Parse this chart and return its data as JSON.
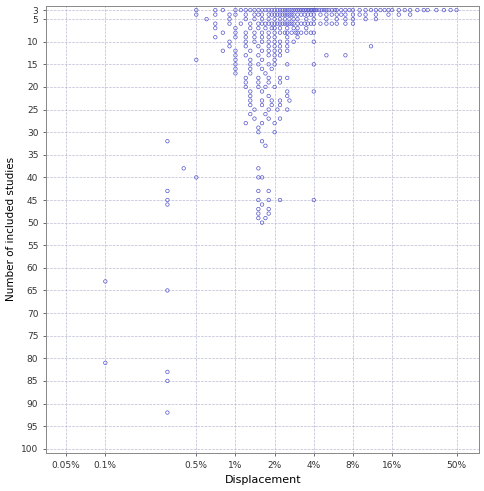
{
  "title": "",
  "xlabel": "Displacement",
  "ylabel": "Number of included studies",
  "marker": "o",
  "marker_color": "#5555cc",
  "marker_size": 2.5,
  "marker_facecolor": "none",
  "background_color": "#ffffff",
  "grid_color": "#aaaacc",
  "x_ticks_labels": [
    "0.05%",
    "0.1%",
    "0.5%",
    "1%",
    "2%",
    "4%",
    "8%",
    "16%",
    "50%"
  ],
  "x_ticks_values": [
    0.0005,
    0.001,
    0.005,
    0.01,
    0.02,
    0.04,
    0.08,
    0.16,
    0.5
  ],
  "y_ticks": [
    3,
    5,
    10,
    15,
    20,
    25,
    30,
    35,
    40,
    45,
    50,
    55,
    60,
    65,
    70,
    75,
    80,
    85,
    90,
    95,
    100
  ],
  "points": [
    [
      0.005,
      3
    ],
    [
      0.007,
      3
    ],
    [
      0.008,
      3
    ],
    [
      0.01,
      3
    ],
    [
      0.011,
      3
    ],
    [
      0.012,
      3
    ],
    [
      0.013,
      3
    ],
    [
      0.014,
      3
    ],
    [
      0.015,
      3
    ],
    [
      0.016,
      3
    ],
    [
      0.017,
      3
    ],
    [
      0.018,
      3
    ],
    [
      0.019,
      3
    ],
    [
      0.02,
      3
    ],
    [
      0.021,
      3
    ],
    [
      0.022,
      3
    ],
    [
      0.023,
      3
    ],
    [
      0.024,
      3
    ],
    [
      0.025,
      3
    ],
    [
      0.026,
      3
    ],
    [
      0.027,
      3
    ],
    [
      0.028,
      3
    ],
    [
      0.029,
      3
    ],
    [
      0.03,
      3
    ],
    [
      0.031,
      3
    ],
    [
      0.032,
      3
    ],
    [
      0.033,
      3
    ],
    [
      0.034,
      3
    ],
    [
      0.035,
      3
    ],
    [
      0.036,
      3
    ],
    [
      0.037,
      3
    ],
    [
      0.038,
      3
    ],
    [
      0.039,
      3
    ],
    [
      0.04,
      3
    ],
    [
      0.041,
      3
    ],
    [
      0.042,
      3
    ],
    [
      0.044,
      3
    ],
    [
      0.046,
      3
    ],
    [
      0.048,
      3
    ],
    [
      0.05,
      3
    ],
    [
      0.052,
      3
    ],
    [
      0.055,
      3
    ],
    [
      0.058,
      3
    ],
    [
      0.06,
      3
    ],
    [
      0.065,
      3
    ],
    [
      0.07,
      3
    ],
    [
      0.075,
      3
    ],
    [
      0.08,
      3
    ],
    [
      0.09,
      3
    ],
    [
      0.1,
      3
    ],
    [
      0.11,
      3
    ],
    [
      0.12,
      3
    ],
    [
      0.13,
      3
    ],
    [
      0.14,
      3
    ],
    [
      0.15,
      3
    ],
    [
      0.16,
      3
    ],
    [
      0.18,
      3
    ],
    [
      0.2,
      3
    ],
    [
      0.22,
      3
    ],
    [
      0.25,
      3
    ],
    [
      0.28,
      3
    ],
    [
      0.3,
      3
    ],
    [
      0.35,
      3
    ],
    [
      0.4,
      3
    ],
    [
      0.45,
      3
    ],
    [
      0.5,
      3
    ],
    [
      0.005,
      4
    ],
    [
      0.007,
      4
    ],
    [
      0.009,
      4
    ],
    [
      0.01,
      4
    ],
    [
      0.012,
      4
    ],
    [
      0.014,
      4
    ],
    [
      0.015,
      4
    ],
    [
      0.016,
      4
    ],
    [
      0.018,
      4
    ],
    [
      0.019,
      4
    ],
    [
      0.02,
      4
    ],
    [
      0.021,
      4
    ],
    [
      0.022,
      4
    ],
    [
      0.023,
      4
    ],
    [
      0.024,
      4
    ],
    [
      0.025,
      4
    ],
    [
      0.026,
      4
    ],
    [
      0.027,
      4
    ],
    [
      0.028,
      4
    ],
    [
      0.03,
      4
    ],
    [
      0.032,
      4
    ],
    [
      0.034,
      4
    ],
    [
      0.036,
      4
    ],
    [
      0.038,
      4
    ],
    [
      0.04,
      4
    ],
    [
      0.045,
      4
    ],
    [
      0.05,
      4
    ],
    [
      0.055,
      4
    ],
    [
      0.06,
      4
    ],
    [
      0.065,
      4
    ],
    [
      0.07,
      4
    ],
    [
      0.08,
      4
    ],
    [
      0.09,
      4
    ],
    [
      0.1,
      4
    ],
    [
      0.12,
      4
    ],
    [
      0.15,
      4
    ],
    [
      0.18,
      4
    ],
    [
      0.22,
      4
    ],
    [
      0.006,
      5
    ],
    [
      0.009,
      5
    ],
    [
      0.012,
      5
    ],
    [
      0.014,
      5
    ],
    [
      0.016,
      5
    ],
    [
      0.018,
      5
    ],
    [
      0.02,
      5
    ],
    [
      0.022,
      5
    ],
    [
      0.024,
      5
    ],
    [
      0.026,
      5
    ],
    [
      0.028,
      5
    ],
    [
      0.03,
      5
    ],
    [
      0.035,
      5
    ],
    [
      0.04,
      5
    ],
    [
      0.05,
      5
    ],
    [
      0.06,
      5
    ],
    [
      0.07,
      5
    ],
    [
      0.08,
      5
    ],
    [
      0.1,
      5
    ],
    [
      0.12,
      5
    ],
    [
      0.007,
      6
    ],
    [
      0.009,
      6
    ],
    [
      0.011,
      6
    ],
    [
      0.013,
      6
    ],
    [
      0.015,
      6
    ],
    [
      0.016,
      6
    ],
    [
      0.017,
      6
    ],
    [
      0.018,
      6
    ],
    [
      0.019,
      6
    ],
    [
      0.02,
      6
    ],
    [
      0.021,
      6
    ],
    [
      0.022,
      6
    ],
    [
      0.023,
      6
    ],
    [
      0.024,
      6
    ],
    [
      0.025,
      6
    ],
    [
      0.026,
      6
    ],
    [
      0.027,
      6
    ],
    [
      0.028,
      6
    ],
    [
      0.03,
      6
    ],
    [
      0.032,
      6
    ],
    [
      0.034,
      6
    ],
    [
      0.036,
      6
    ],
    [
      0.038,
      6
    ],
    [
      0.04,
      6
    ],
    [
      0.045,
      6
    ],
    [
      0.05,
      6
    ],
    [
      0.055,
      6
    ],
    [
      0.06,
      6
    ],
    [
      0.07,
      6
    ],
    [
      0.08,
      6
    ],
    [
      0.007,
      7
    ],
    [
      0.01,
      7
    ],
    [
      0.013,
      7
    ],
    [
      0.015,
      7
    ],
    [
      0.017,
      7
    ],
    [
      0.019,
      7
    ],
    [
      0.02,
      7
    ],
    [
      0.022,
      7
    ],
    [
      0.025,
      7
    ],
    [
      0.028,
      7
    ],
    [
      0.03,
      7
    ],
    [
      0.035,
      7
    ],
    [
      0.008,
      8
    ],
    [
      0.01,
      8
    ],
    [
      0.012,
      8
    ],
    [
      0.014,
      8
    ],
    [
      0.016,
      8
    ],
    [
      0.018,
      8
    ],
    [
      0.02,
      8
    ],
    [
      0.022,
      8
    ],
    [
      0.024,
      8
    ],
    [
      0.025,
      8
    ],
    [
      0.027,
      8
    ],
    [
      0.029,
      8
    ],
    [
      0.03,
      8
    ],
    [
      0.032,
      8
    ],
    [
      0.035,
      8
    ],
    [
      0.038,
      8
    ],
    [
      0.04,
      8
    ],
    [
      0.007,
      9
    ],
    [
      0.01,
      9
    ],
    [
      0.012,
      9
    ],
    [
      0.014,
      9
    ],
    [
      0.016,
      9
    ],
    [
      0.018,
      9
    ],
    [
      0.02,
      9
    ],
    [
      0.025,
      9
    ],
    [
      0.03,
      9
    ],
    [
      0.009,
      10
    ],
    [
      0.012,
      10
    ],
    [
      0.014,
      10
    ],
    [
      0.016,
      10
    ],
    [
      0.018,
      10
    ],
    [
      0.02,
      10
    ],
    [
      0.022,
      10
    ],
    [
      0.025,
      10
    ],
    [
      0.028,
      10
    ],
    [
      0.04,
      10
    ],
    [
      0.009,
      11
    ],
    [
      0.012,
      11
    ],
    [
      0.015,
      11
    ],
    [
      0.018,
      11
    ],
    [
      0.02,
      11
    ],
    [
      0.022,
      11
    ],
    [
      0.025,
      11
    ],
    [
      0.11,
      11
    ],
    [
      0.008,
      12
    ],
    [
      0.01,
      12
    ],
    [
      0.013,
      12
    ],
    [
      0.016,
      12
    ],
    [
      0.018,
      12
    ],
    [
      0.02,
      12
    ],
    [
      0.022,
      12
    ],
    [
      0.025,
      12
    ],
    [
      0.01,
      13
    ],
    [
      0.012,
      13
    ],
    [
      0.015,
      13
    ],
    [
      0.018,
      13
    ],
    [
      0.02,
      13
    ],
    [
      0.022,
      13
    ],
    [
      0.05,
      13
    ],
    [
      0.07,
      13
    ],
    [
      0.005,
      14
    ],
    [
      0.01,
      14
    ],
    [
      0.013,
      14
    ],
    [
      0.016,
      14
    ],
    [
      0.02,
      14
    ],
    [
      0.01,
      15
    ],
    [
      0.013,
      15
    ],
    [
      0.015,
      15
    ],
    [
      0.018,
      15
    ],
    [
      0.02,
      15
    ],
    [
      0.025,
      15
    ],
    [
      0.04,
      15
    ],
    [
      0.01,
      16
    ],
    [
      0.013,
      16
    ],
    [
      0.016,
      16
    ],
    [
      0.019,
      16
    ],
    [
      0.01,
      17
    ],
    [
      0.013,
      17
    ],
    [
      0.017,
      17
    ],
    [
      0.012,
      18
    ],
    [
      0.015,
      18
    ],
    [
      0.018,
      18
    ],
    [
      0.022,
      18
    ],
    [
      0.025,
      18
    ],
    [
      0.012,
      19
    ],
    [
      0.015,
      19
    ],
    [
      0.018,
      19
    ],
    [
      0.022,
      19
    ],
    [
      0.012,
      20
    ],
    [
      0.015,
      20
    ],
    [
      0.017,
      20
    ],
    [
      0.02,
      20
    ],
    [
      0.013,
      21
    ],
    [
      0.016,
      21
    ],
    [
      0.025,
      21
    ],
    [
      0.04,
      21
    ],
    [
      0.013,
      22
    ],
    [
      0.018,
      22
    ],
    [
      0.025,
      22
    ],
    [
      0.013,
      23
    ],
    [
      0.016,
      23
    ],
    [
      0.019,
      23
    ],
    [
      0.022,
      23
    ],
    [
      0.026,
      23
    ],
    [
      0.013,
      24
    ],
    [
      0.016,
      24
    ],
    [
      0.019,
      24
    ],
    [
      0.022,
      24
    ],
    [
      0.014,
      25
    ],
    [
      0.018,
      25
    ],
    [
      0.021,
      25
    ],
    [
      0.025,
      25
    ],
    [
      0.013,
      26
    ],
    [
      0.017,
      26
    ],
    [
      0.014,
      27
    ],
    [
      0.018,
      27
    ],
    [
      0.022,
      27
    ],
    [
      0.012,
      28
    ],
    [
      0.016,
      28
    ],
    [
      0.02,
      28
    ],
    [
      0.015,
      29
    ],
    [
      0.015,
      30
    ],
    [
      0.02,
      30
    ],
    [
      0.003,
      32
    ],
    [
      0.016,
      32
    ],
    [
      0.017,
      33
    ],
    [
      0.004,
      38
    ],
    [
      0.015,
      38
    ],
    [
      0.005,
      40
    ],
    [
      0.015,
      40
    ],
    [
      0.016,
      40
    ],
    [
      0.003,
      43
    ],
    [
      0.015,
      43
    ],
    [
      0.018,
      43
    ],
    [
      0.003,
      45
    ],
    [
      0.015,
      45
    ],
    [
      0.018,
      45
    ],
    [
      0.022,
      45
    ],
    [
      0.04,
      45
    ],
    [
      0.003,
      46
    ],
    [
      0.016,
      46
    ],
    [
      0.015,
      47
    ],
    [
      0.018,
      47
    ],
    [
      0.015,
      48
    ],
    [
      0.018,
      48
    ],
    [
      0.015,
      49
    ],
    [
      0.017,
      49
    ],
    [
      0.016,
      50
    ],
    [
      0.001,
      63
    ],
    [
      0.003,
      65
    ],
    [
      0.001,
      81
    ],
    [
      0.003,
      83
    ],
    [
      0.003,
      85
    ],
    [
      0.003,
      92
    ]
  ]
}
